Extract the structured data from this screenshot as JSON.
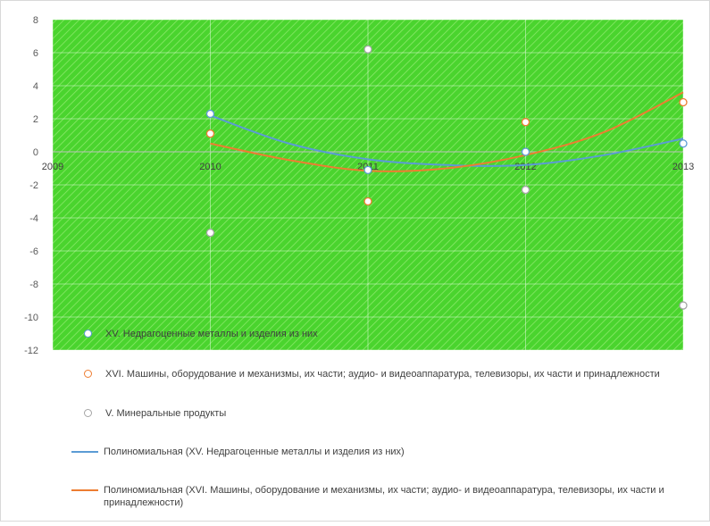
{
  "chart_data": {
    "type": "scatter",
    "x": [
      2010,
      2011,
      2012,
      2013
    ],
    "xlim": [
      2009,
      2013
    ],
    "ylim": [
      -12,
      8
    ],
    "x_ticks": [
      "2009",
      "2010",
      "2011",
      "2012",
      "2013"
    ],
    "y_ticks": [
      "8",
      "6",
      "4",
      "2",
      "0",
      "-2",
      "-4",
      "-6",
      "-8",
      "-10",
      "-12"
    ],
    "plot_background": "#4cd137",
    "grid": true,
    "legend_position": "bottom",
    "series": [
      {
        "name": "XV. Недрагоценные металлы и изделия из них",
        "values": [
          2.3,
          -1.1,
          0.0,
          0.5
        ],
        "marker_color": "#5b9bd5"
      },
      {
        "name": "XVI. Машины, оборудование  и механизмы, их части; аудио- и видеоаппаратура, телевизоры, их части и принадлежности",
        "values": [
          1.1,
          -3.0,
          1.8,
          3.0
        ],
        "marker_color": "#ed7d31"
      },
      {
        "name": "V. Минеральные продукты",
        "values": [
          -4.9,
          6.2,
          -2.3,
          -9.3
        ],
        "marker_color": "#a5a5a5"
      }
    ],
    "trendlines": [
      {
        "name": "Полиномиальная (XV. Недрагоценные металлы и изделия из них)",
        "color": "#5b9bd5",
        "points": [
          [
            2010,
            2.2
          ],
          [
            2010.5,
            0.5
          ],
          [
            2011,
            -0.45
          ],
          [
            2011.5,
            -0.8
          ],
          [
            2012,
            -0.8
          ],
          [
            2012.5,
            -0.2
          ],
          [
            2013,
            0.8
          ]
        ]
      },
      {
        "name": "Полиномиальная (XVI. Машины, оборудование  и механизмы, их части; аудио- и видеоаппаратура, телевизоры, их части и принадлежности)",
        "color": "#ed7d31",
        "points": [
          [
            2010,
            0.5
          ],
          [
            2010.5,
            -0.5
          ],
          [
            2011,
            -1.15
          ],
          [
            2011.5,
            -1.0
          ],
          [
            2012,
            -0.2
          ],
          [
            2012.5,
            1.2
          ],
          [
            2013,
            3.6
          ]
        ]
      }
    ]
  }
}
